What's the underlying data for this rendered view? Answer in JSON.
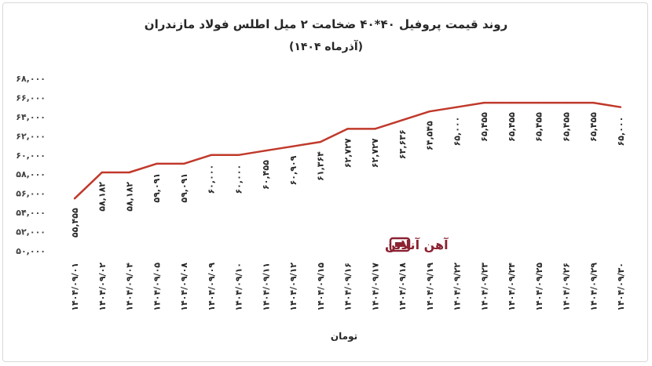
{
  "colors": {
    "line": "#c0392b",
    "watermark": "#8b2232",
    "text": "#262626"
  },
  "watermark": {
    "text": "آهن آنلاین",
    "icon": "ahanonline-logo-icon"
  },
  "chart_data": {
    "type": "line",
    "title": "روند قیمت پروفیل ۴۰*۴۰ ضخامت ۲ میل اطلس فولاد مازندران",
    "subtitle": "(آذرماه ۱۴۰۴)",
    "xlabel": "تومان",
    "ylabel": "",
    "ylim": [
      50000,
      68000
    ],
    "ytick_values": [
      50000,
      52000,
      54000,
      56000,
      58000,
      60000,
      62000,
      64000,
      66000,
      68000
    ],
    "ytick_labels": [
      "۵۰,۰۰۰",
      "۵۲,۰۰۰",
      "۵۴,۰۰۰",
      "۵۶,۰۰۰",
      "۵۸,۰۰۰",
      "۶۰,۰۰۰",
      "۶۲,۰۰۰",
      "۶۴,۰۰۰",
      "۶۶,۰۰۰",
      "۶۸,۰۰۰"
    ],
    "grid": false,
    "legend": "none",
    "categories": [
      "۱۴۰۴/۰۹/۰۱",
      "۱۴۰۴/۰۹/۰۲",
      "۱۴۰۴/۰۹/۰۴",
      "۱۴۰۴/۰۹/۰۵",
      "۱۴۰۴/۰۹/۰۸",
      "۱۴۰۴/۰۹/۰۹",
      "۱۴۰۴/۰۹/۱۰",
      "۱۴۰۴/۰۹/۱۱",
      "۱۴۰۴/۰۹/۱۲",
      "۱۴۰۴/۰۹/۱۵",
      "۱۴۰۴/۰۹/۱۶",
      "۱۴۰۴/۰۹/۱۷",
      "۱۴۰۴/۰۹/۱۸",
      "۱۴۰۴/۰۹/۱۹",
      "۱۴۰۴/۰۹/۲۲",
      "۱۴۰۴/۰۹/۲۳",
      "۱۴۰۴/۰۹/۲۴",
      "۱۴۰۴/۰۹/۲۵",
      "۱۴۰۴/۰۹/۲۶",
      "۱۴۰۴/۰۹/۲۹",
      "۱۴۰۴/۰۹/۳۰"
    ],
    "values": [
      55455,
      58182,
      58182,
      59091,
      59091,
      60000,
      60000,
      60455,
      60909,
      61364,
      62727,
      62727,
      63636,
      64545,
      65000,
      65455,
      65455,
      65455,
      65455,
      65455,
      65000
    ],
    "value_labels": [
      "۵۵,۴۵۵",
      "۵۸,۱۸۲",
      "۵۸,۱۸۲",
      "۵۹,۰۹۱",
      "۵۹,۰۹۱",
      "۶۰,۰۰۰",
      "۶۰,۰۰۰",
      "۶۰,۴۵۵",
      "۶۰,۹۰۹",
      "۶۱,۳۶۴",
      "۶۲,۷۲۷",
      "۶۲,۷۲۷",
      "۶۳,۶۳۶",
      "۶۴,۵۴۵",
      "۶۵,۰۰۰",
      "۶۵,۴۵۵",
      "۶۵,۴۵۵",
      "۶۵,۴۵۵",
      "۶۵,۴۵۵",
      "۶۵,۴۵۵",
      "۶۵,۰۰۰"
    ]
  }
}
